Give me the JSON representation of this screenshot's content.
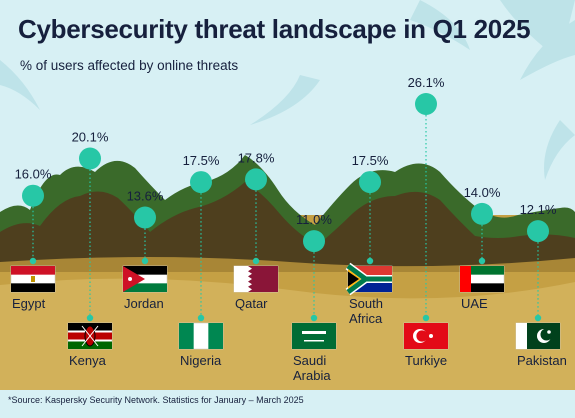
{
  "title": "Cybersecurity threat landscape in Q1 2025",
  "subtitle": "% of users affected by online threats",
  "source": "*Source: Kaspersky Security Network. Statistics for January – March 2025",
  "colors": {
    "background": "#d7f0f4",
    "marker": "#27c7a6",
    "text": "#16203d",
    "sand": "#c5a044",
    "hill_dark": "#4e3f1e",
    "hill_green": "#3a6a2a"
  },
  "chart_data": {
    "type": "scatter",
    "title": "Cybersecurity threat landscape in Q1 2025",
    "subtitle": "% of users affected by online threats",
    "unit": "%",
    "categories": [
      "Egypt",
      "Kenya",
      "Jordan",
      "Nigeria",
      "Qatar",
      "Saudi Arabia",
      "South Africa",
      "Turkiye",
      "UAE",
      "Pakistan"
    ],
    "values": [
      16.0,
      20.1,
      13.6,
      17.5,
      17.8,
      11.0,
      17.5,
      26.1,
      14.0,
      12.1
    ],
    "labels": [
      "16.0%",
      "20.1%",
      "13.6%",
      "17.5%",
      "17.8%",
      "11.0%",
      "17.5%",
      "26.1%",
      "14.0%",
      "12.1%"
    ],
    "flags": [
      "egypt-flag",
      "kenya-flag",
      "jordan-flag",
      "nigeria-flag",
      "qatar-flag",
      "saudi-arabia-flag",
      "south-africa-flag",
      "turkiye-flag",
      "uae-flag",
      "pakistan-flag"
    ]
  }
}
